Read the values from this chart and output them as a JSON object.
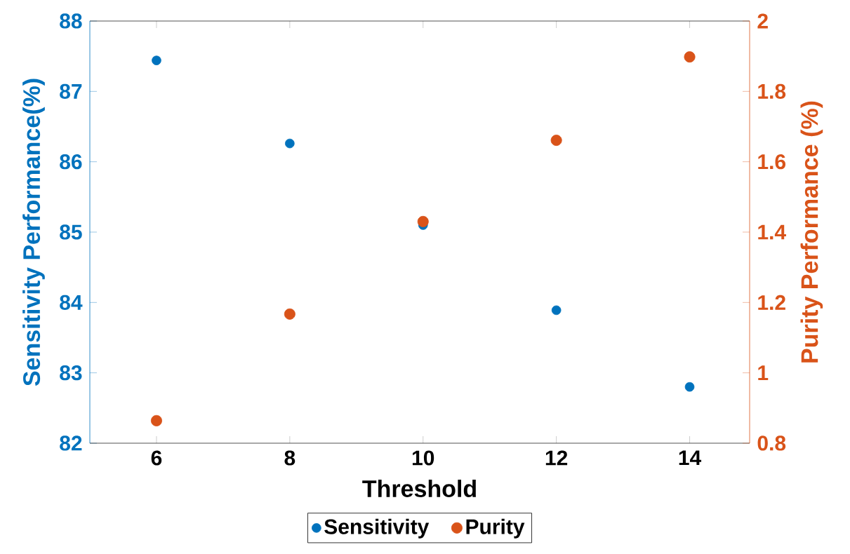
{
  "chart_data": {
    "type": "scatter",
    "xlabel": "Threshold",
    "ylabel": "Sensitivity Performance(%)",
    "y2label": "Purity Performance (%)",
    "x": [
      6,
      8,
      10,
      12,
      14
    ],
    "series": [
      {
        "name": "Sensitivity",
        "color": "#0072bd",
        "values": [
          87.44,
          86.26,
          85.1,
          83.89,
          82.8
        ]
      },
      {
        "name": "Purity",
        "color": "#d95319",
        "axis": "y2",
        "values": [
          0.864,
          1.167,
          1.43,
          1.661,
          1.898
        ]
      }
    ],
    "xlim": [
      5,
      14.9
    ],
    "xticks": [
      6,
      8,
      10,
      12,
      14
    ],
    "ylim": [
      82,
      88
    ],
    "yticks": [
      82,
      83,
      84,
      85,
      86,
      87,
      88
    ],
    "y2lim": [
      0.8,
      2
    ],
    "y2ticks": [
      {
        "value": 0.8,
        "label": "0.8"
      },
      {
        "value": 1,
        "label": "1"
      },
      {
        "value": 1.2,
        "label": "1.2"
      },
      {
        "value": 1.4,
        "label": "1.4"
      },
      {
        "value": 1.6,
        "label": "1.6"
      },
      {
        "value": 1.8,
        "label": "1.8"
      },
      {
        "value": 2,
        "label": "2"
      }
    ],
    "marker": "circle",
    "legend": "bottom"
  }
}
